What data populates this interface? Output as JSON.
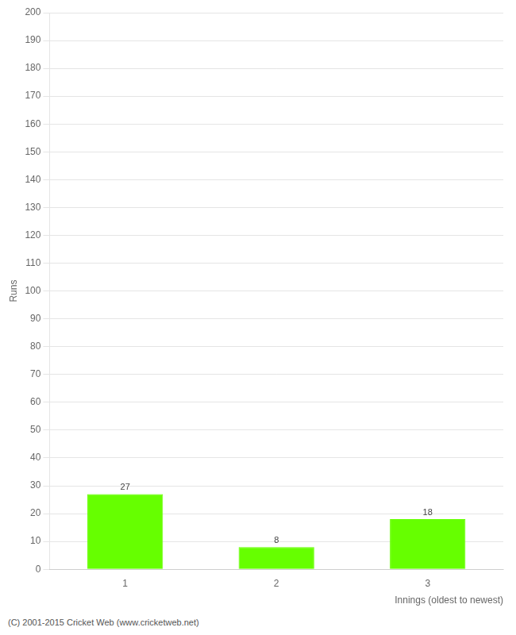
{
  "chart_data": {
    "type": "bar",
    "xlabel": "Innings (oldest to newest)",
    "ylabel": "Runs",
    "categories": [
      "1",
      "2",
      "3"
    ],
    "values": [
      27,
      8,
      18
    ],
    "color": "#66ff00",
    "ylim": [
      0,
      200
    ],
    "yticks": [
      0,
      10,
      20,
      30,
      40,
      50,
      60,
      70,
      80,
      90,
      100,
      110,
      120,
      130,
      140,
      150,
      160,
      170,
      180,
      190,
      200
    ],
    "grid": true,
    "data_labels": true,
    "annotations": [
      "(C) 2001-2015 Cricket Web (www.cricketweb.net)"
    ]
  }
}
